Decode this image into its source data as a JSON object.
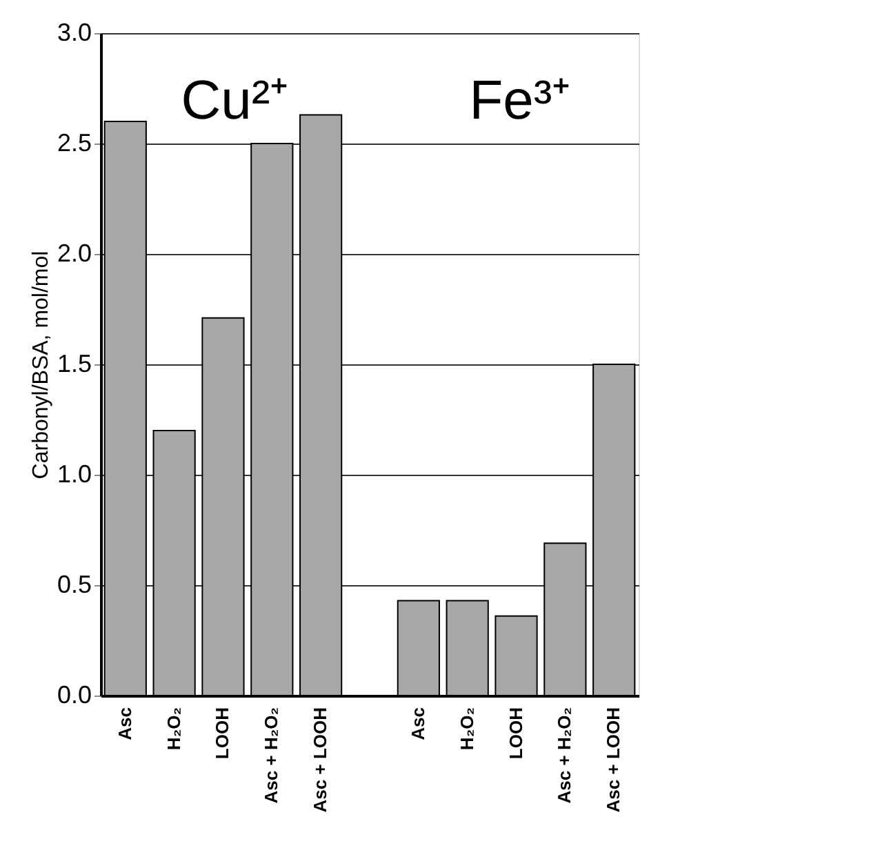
{
  "chart_data": {
    "type": "bar",
    "categories": [
      "Asc",
      "H₂O₂",
      "LOOH",
      "Asc + H₂O₂",
      "Asc + LOOH",
      null,
      "Asc",
      "H₂O₂",
      "LOOH",
      "Asc + H₂O₂",
      "Asc + LOOH"
    ],
    "values": [
      2.6,
      1.2,
      1.71,
      2.5,
      2.63,
      null,
      0.43,
      0.43,
      0.36,
      0.69,
      1.5
    ],
    "color": "#a8a8a8",
    "ylabel": "Carbonyl/BSA, mol/mol",
    "ylim": [
      0,
      3.0
    ],
    "yticks": [
      {
        "value": 0,
        "label": "0.0"
      },
      0.5,
      {
        "value": 1,
        "label": "1.0"
      },
      1.5,
      {
        "value": 2,
        "label": "2.0"
      },
      2.5,
      {
        "value": 3,
        "label": "3.0"
      }
    ],
    "grid": "y",
    "annotations": [
      "Cu²⁺",
      "Fe³⁺"
    ]
  }
}
